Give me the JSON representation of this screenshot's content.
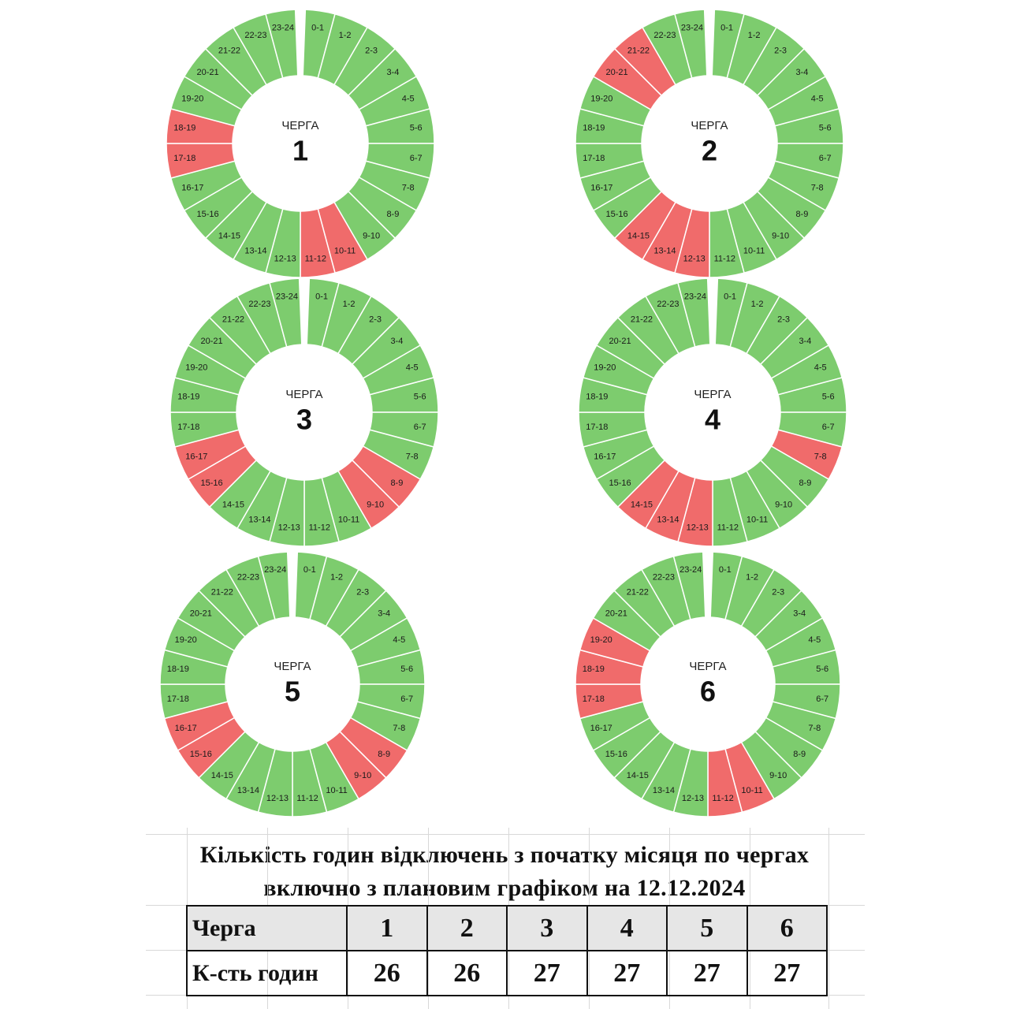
{
  "colors": {
    "on": "#7dcc6e",
    "off": "#f06b6b",
    "separator": "#ffffff"
  },
  "chart_data": [
    {
      "type": "pie",
      "queue_label": "ЧЕРГА",
      "queue_number": "1",
      "slots": [
        "0-1",
        "1-2",
        "2-3",
        "3-4",
        "4-5",
        "5-6",
        "6-7",
        "7-8",
        "8-9",
        "9-10",
        "10-11",
        "11-12",
        "12-13",
        "13-14",
        "14-15",
        "15-16",
        "16-17",
        "17-18",
        "18-19",
        "19-20",
        "20-21",
        "21-22",
        "22-23",
        "23-24"
      ],
      "outage_slots": [
        "10-11",
        "11-12",
        "17-18",
        "18-19"
      ]
    },
    {
      "type": "pie",
      "queue_label": "ЧЕРГА",
      "queue_number": "2",
      "slots": [
        "0-1",
        "1-2",
        "2-3",
        "3-4",
        "4-5",
        "5-6",
        "6-7",
        "7-8",
        "8-9",
        "9-10",
        "10-11",
        "11-12",
        "12-13",
        "13-14",
        "14-15",
        "15-16",
        "16-17",
        "17-18",
        "18-19",
        "19-20",
        "20-21",
        "21-22",
        "22-23",
        "23-24"
      ],
      "outage_slots": [
        "12-13",
        "13-14",
        "14-15",
        "20-21",
        "21-22"
      ]
    },
    {
      "type": "pie",
      "queue_label": "ЧЕРГА",
      "queue_number": "3",
      "slots": [
        "0-1",
        "1-2",
        "2-3",
        "3-4",
        "4-5",
        "5-6",
        "6-7",
        "7-8",
        "8-9",
        "9-10",
        "10-11",
        "11-12",
        "12-13",
        "13-14",
        "14-15",
        "15-16",
        "16-17",
        "17-18",
        "18-19",
        "19-20",
        "20-21",
        "21-22",
        "22-23",
        "23-24"
      ],
      "outage_slots": [
        "8-9",
        "9-10",
        "15-16",
        "16-17"
      ]
    },
    {
      "type": "pie",
      "queue_label": "ЧЕРГА",
      "queue_number": "4",
      "slots": [
        "0-1",
        "1-2",
        "2-3",
        "3-4",
        "4-5",
        "5-6",
        "6-7",
        "7-8",
        "8-9",
        "9-10",
        "10-11",
        "11-12",
        "12-13",
        "13-14",
        "14-15",
        "15-16",
        "16-17",
        "17-18",
        "18-19",
        "19-20",
        "20-21",
        "21-22",
        "22-23",
        "23-24"
      ],
      "outage_slots": [
        "7-8",
        "12-13",
        "13-14",
        "14-15"
      ]
    },
    {
      "type": "pie",
      "queue_label": "ЧЕРГА",
      "queue_number": "5",
      "slots": [
        "0-1",
        "1-2",
        "2-3",
        "3-4",
        "4-5",
        "5-6",
        "6-7",
        "7-8",
        "8-9",
        "9-10",
        "10-11",
        "11-12",
        "12-13",
        "13-14",
        "14-15",
        "15-16",
        "16-17",
        "17-18",
        "18-19",
        "19-20",
        "20-21",
        "21-22",
        "22-23",
        "23-24"
      ],
      "outage_slots": [
        "8-9",
        "9-10",
        "15-16",
        "16-17"
      ]
    },
    {
      "type": "pie",
      "queue_label": "ЧЕРГА",
      "queue_number": "6",
      "slots": [
        "0-1",
        "1-2",
        "2-3",
        "3-4",
        "4-5",
        "5-6",
        "6-7",
        "7-8",
        "8-9",
        "9-10",
        "10-11",
        "11-12",
        "12-13",
        "13-14",
        "14-15",
        "15-16",
        "16-17",
        "17-18",
        "18-19",
        "19-20",
        "20-21",
        "21-22",
        "22-23",
        "23-24"
      ],
      "outage_slots": [
        "10-11",
        "11-12",
        "17-18",
        "18-19",
        "19-20"
      ]
    }
  ],
  "summary": {
    "title_line1": "Кількість годин відключень з початку місяця по чергах",
    "title_line2": "включно з плановим графіком на 12.12.2024",
    "row1_label": "Черга",
    "row2_label": "К-сть годин",
    "queues": [
      "1",
      "2",
      "3",
      "4",
      "5",
      "6"
    ],
    "hours": [
      "26",
      "26",
      "27",
      "27",
      "27",
      "27"
    ]
  }
}
